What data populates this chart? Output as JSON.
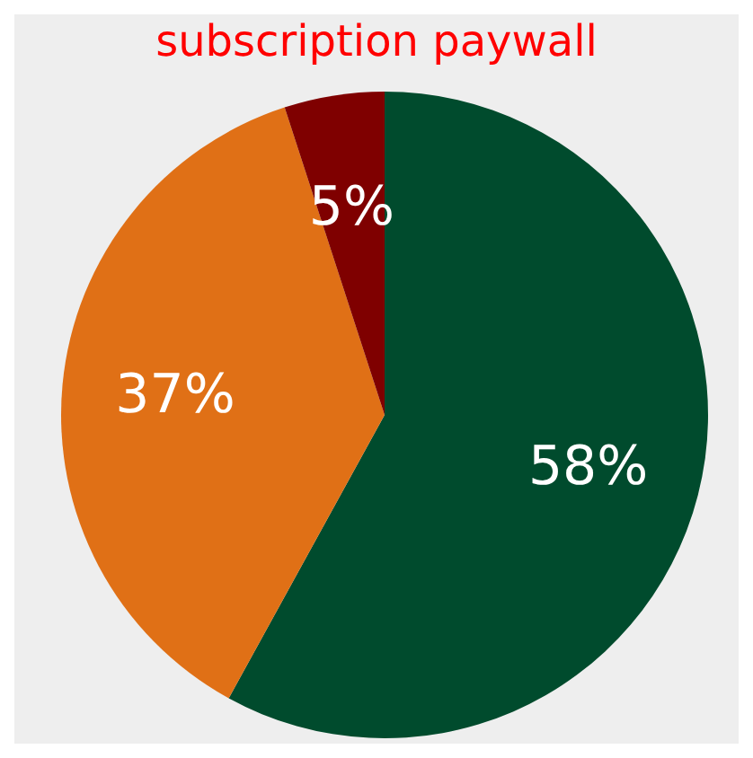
{
  "chart_data": {
    "type": "pie",
    "title": "subscription paywall",
    "categories": [
      null,
      null,
      null
    ],
    "values": [
      58,
      37,
      5
    ],
    "colors": [
      "#004b2d",
      "#e07016",
      "#7f0000"
    ],
    "value_labels": [
      "58%",
      "37%",
      "5%"
    ],
    "legend": false
  }
}
